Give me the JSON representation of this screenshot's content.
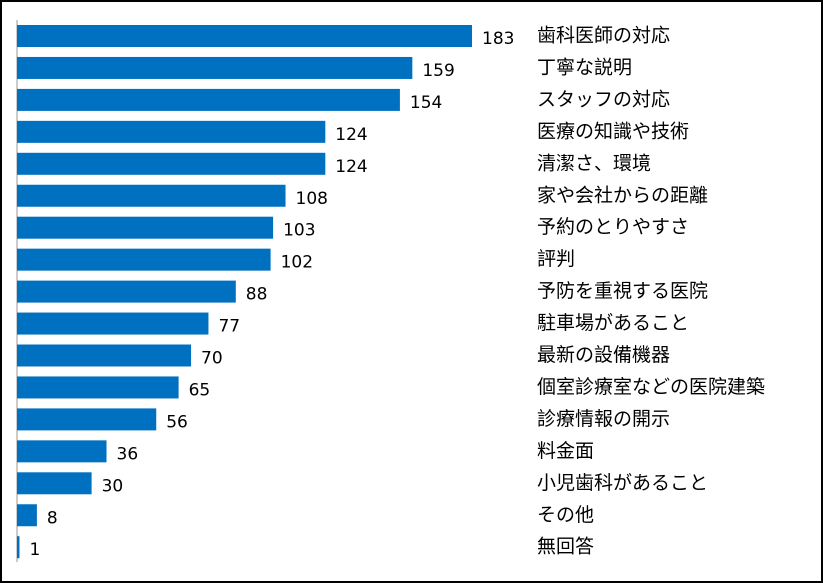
{
  "chart_data": {
    "type": "barh",
    "categories": [
      "歯科医師の対応",
      "丁寧な説明",
      "スタッフの対応",
      "医療の知識や技術",
      "清潔さ、環境",
      "家や会社からの距離",
      "予約のとりやすさ",
      "評判",
      "予防を重視する医院",
      "駐車場があること",
      "最新の設備機器",
      "個室診療室などの医院建築",
      "診療情報の開示",
      "料金面",
      "小児歯科があること",
      "その他",
      "無回答"
    ],
    "values": [
      183,
      159,
      154,
      124,
      124,
      108,
      103,
      102,
      88,
      77,
      70,
      65,
      56,
      36,
      30,
      8,
      1
    ],
    "color": "#0070c0"
  }
}
